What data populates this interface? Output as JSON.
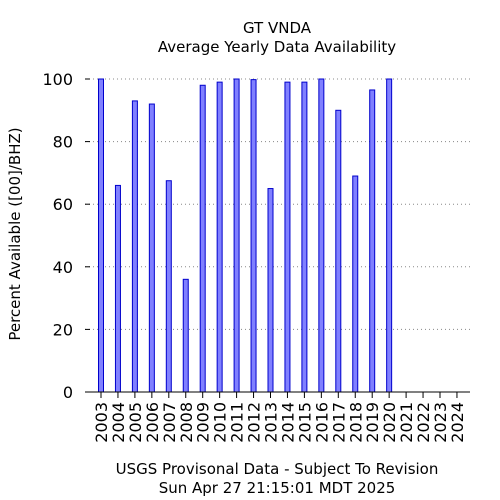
{
  "chart_data": {
    "type": "bar",
    "title": "GT VNDA",
    "subtitle": "Average Yearly Data Availability",
    "ylabel": "Percent Available ([00]/BHZ)",
    "xlabel": "",
    "categories": [
      "2003",
      "2004",
      "2005",
      "2006",
      "2007",
      "2008",
      "2009",
      "2010",
      "2011",
      "2012",
      "2013",
      "2014",
      "2015",
      "2016",
      "2017",
      "2018",
      "2019",
      "2020",
      "2021",
      "2022",
      "2023",
      "2024"
    ],
    "values": [
      100,
      66,
      93,
      92,
      67.5,
      36,
      98,
      99,
      100,
      99.8,
      65,
      99,
      99,
      100,
      90,
      69,
      96.5,
      100,
      0,
      0,
      0,
      0
    ],
    "ylim": [
      0,
      100
    ],
    "yticks": [
      0,
      20,
      40,
      60,
      80,
      100
    ],
    "grid": "horizontal dotted",
    "legend": "none",
    "bar_fill": "#8080ff",
    "bar_stroke": "#0000cc",
    "grid_color": "#888888"
  },
  "footer": {
    "line1": "USGS Provisonal Data - Subject To Revision",
    "line2": "Sun Apr 27 21:15:01 MDT 2025"
  }
}
